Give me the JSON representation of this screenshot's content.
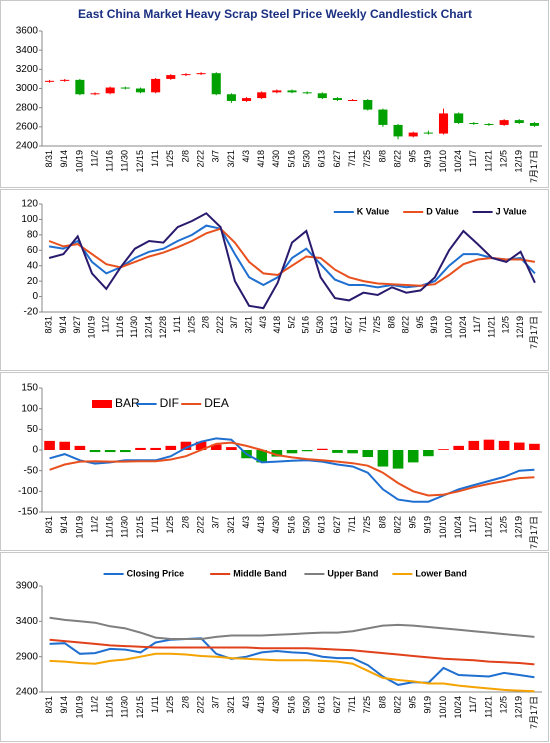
{
  "chart_data": [
    {
      "type": "candlestick",
      "title": "East China Market Heavy Scrap Steel Price Weekly Candlestick Chart",
      "categories": [
        "8/31",
        "9/14",
        "10/19",
        "11/2",
        "11/16",
        "11/30",
        "12/15",
        "1/11",
        "1/25",
        "2/8",
        "2/22",
        "3/7",
        "3/21",
        "4/3",
        "4/18",
        "4/30",
        "5/16",
        "5/30",
        "6/13",
        "6/27",
        "7/11",
        "7/25",
        "8/8",
        "8/22",
        "9/5",
        "9/19",
        "10/10",
        "10/24",
        "11/7",
        "11/21",
        "12/5",
        "12/19",
        "7月17日"
      ],
      "open": [
        3070,
        3080,
        3090,
        2940,
        2950,
        3010,
        3000,
        2960,
        3100,
        3140,
        3150,
        3160,
        2940,
        2870,
        2900,
        2960,
        2980,
        2960,
        2950,
        2900,
        2880,
        2880,
        2780,
        2620,
        2500,
        2540,
        2530,
        2740,
        2640,
        2630,
        2620,
        2670,
        2640
      ],
      "high": [
        3090,
        3100,
        3100,
        2960,
        3020,
        3020,
        3010,
        3110,
        3150,
        3160,
        3170,
        3170,
        2950,
        2910,
        2970,
        2990,
        2990,
        2970,
        2960,
        2910,
        2890,
        2890,
        2790,
        2630,
        2550,
        2560,
        2790,
        2750,
        2650,
        2640,
        2680,
        2680,
        2650
      ],
      "low": [
        3060,
        3070,
        2930,
        2930,
        2940,
        2990,
        2950,
        2950,
        3090,
        3130,
        3140,
        2930,
        2850,
        2860,
        2890,
        2950,
        2950,
        2940,
        2890,
        2870,
        2870,
        2770,
        2600,
        2470,
        2490,
        2520,
        2520,
        2630,
        2620,
        2610,
        2610,
        2630,
        2600
      ],
      "close": [
        3080,
        3090,
        2940,
        2950,
        3010,
        3000,
        2960,
        3100,
        3140,
        3150,
        3160,
        2940,
        2870,
        2900,
        2960,
        2980,
        2960,
        2950,
        2900,
        2880,
        2880,
        2780,
        2620,
        2500,
        2540,
        2530,
        2740,
        2640,
        2630,
        2620,
        2670,
        2640,
        2610
      ],
      "up_color": "#ff0000",
      "down_color": "#00a000",
      "ylim": [
        2400,
        3600
      ],
      "yticks": [
        2400,
        2600,
        2800,
        3000,
        3200,
        3400,
        3600
      ]
    },
    {
      "type": "line",
      "legend": "top-right",
      "categories": [
        "8/31",
        "9/14",
        "9/27",
        "10/19",
        "11/2",
        "11/16",
        "11/30",
        "12/14",
        "12/28",
        "1/11",
        "1/25",
        "2/8",
        "2/22",
        "3/7",
        "3/21",
        "4/3",
        "4/18",
        "5/2",
        "5/16",
        "5/30",
        "6/13",
        "6/27",
        "7/11",
        "7/25",
        "8/8",
        "8/22",
        "9/5",
        "9/19",
        "10/10",
        "10/24",
        "11/7",
        "11/21",
        "12/5",
        "12/19",
        "7月17日"
      ],
      "series": [
        {
          "name": "K Value",
          "color": "#1f6fd0",
          "values": [
            65,
            62,
            72,
            45,
            30,
            38,
            50,
            58,
            62,
            72,
            80,
            92,
            88,
            55,
            25,
            15,
            25,
            50,
            62,
            42,
            22,
            15,
            15,
            12,
            15,
            12,
            14,
            20,
            40,
            55,
            55,
            50,
            48,
            50,
            30
          ]
        },
        {
          "name": "D Value",
          "color": "#e8501e",
          "values": [
            72,
            65,
            68,
            55,
            42,
            38,
            45,
            52,
            57,
            64,
            72,
            82,
            88,
            70,
            45,
            30,
            28,
            40,
            52,
            50,
            35,
            25,
            20,
            17,
            16,
            15,
            14,
            16,
            28,
            42,
            48,
            50,
            48,
            48,
            45
          ]
        },
        {
          "name": "J Value",
          "color": "#2a1a6e",
          "values": [
            50,
            55,
            78,
            30,
            10,
            38,
            62,
            72,
            70,
            90,
            98,
            108,
            90,
            20,
            -12,
            -15,
            18,
            70,
            85,
            25,
            -2,
            -5,
            5,
            2,
            12,
            5,
            8,
            25,
            60,
            85,
            68,
            50,
            45,
            58,
            18
          ]
        }
      ],
      "ylim": [
        -20,
        120
      ],
      "yticks": [
        -20,
        0,
        20,
        40,
        60,
        80,
        100,
        120
      ]
    },
    {
      "type": "combo",
      "legend": "top-left",
      "categories": [
        "8/31",
        "9/14",
        "10/19",
        "11/2",
        "11/16",
        "11/30",
        "12/15",
        "1/11",
        "1/25",
        "2/8",
        "2/22",
        "3/7",
        "3/21",
        "4/3",
        "4/18",
        "4/30",
        "5/16",
        "5/30",
        "6/13",
        "6/27",
        "7/11",
        "7/25",
        "8/8",
        "8/22",
        "9/5",
        "9/19",
        "10/10",
        "10/24",
        "11/7",
        "11/21",
        "12/5",
        "12/19",
        "7月17日"
      ],
      "series": [
        {
          "name": "BAR",
          "type": "bar",
          "color": "#ff0000",
          "negative_color": "#00a000",
          "values": [
            22,
            20,
            10,
            -5,
            -5,
            -5,
            5,
            5,
            10,
            20,
            20,
            13,
            7,
            -20,
            -30,
            -16,
            -8,
            -3,
            3,
            -7,
            -8,
            -17,
            -40,
            -45,
            -30,
            -15,
            2,
            10,
            22,
            25,
            22,
            18,
            15
          ]
        },
        {
          "name": "DIF",
          "type": "line",
          "color": "#1f6fd0",
          "values": [
            -20,
            -10,
            -25,
            -33,
            -30,
            -25,
            -25,
            -25,
            -15,
            5,
            20,
            28,
            25,
            -10,
            -30,
            -28,
            -26,
            -25,
            -28,
            -35,
            -40,
            -55,
            -95,
            -120,
            -125,
            -125,
            -110,
            -95,
            -85,
            -75,
            -65,
            -50,
            -48
          ]
        },
        {
          "name": "DEA",
          "type": "line",
          "color": "#e8501e",
          "values": [
            -48,
            -35,
            -28,
            -27,
            -28,
            -28,
            -27,
            -27,
            -23,
            -15,
            0,
            15,
            18,
            10,
            0,
            -12,
            -18,
            -22,
            -25,
            -28,
            -32,
            -38,
            -55,
            -80,
            -100,
            -110,
            -108,
            -100,
            -90,
            -82,
            -75,
            -68,
            -66
          ]
        }
      ],
      "ylim": [
        -150,
        150
      ],
      "yticks": [
        -150,
        -100,
        -50,
        0,
        50,
        100,
        150
      ]
    },
    {
      "type": "line",
      "legend": "top-center",
      "categories": [
        "8/31",
        "9/14",
        "10/19",
        "11/2",
        "11/16",
        "11/30",
        "12/15",
        "1/11",
        "1/25",
        "2/8",
        "2/22",
        "3/7",
        "3/21",
        "4/3",
        "4/18",
        "4/30",
        "5/16",
        "5/30",
        "6/13",
        "6/27",
        "7/11",
        "7/25",
        "8/8",
        "8/22",
        "9/5",
        "9/19",
        "10/10",
        "10/24",
        "11/7",
        "11/21",
        "12/5",
        "12/19",
        "7月17日"
      ],
      "series": [
        {
          "name": "Closing Price",
          "color": "#1f6fd0",
          "values": [
            3080,
            3090,
            2940,
            2950,
            3010,
            3000,
            2960,
            3100,
            3140,
            3150,
            3160,
            2940,
            2870,
            2900,
            2960,
            2980,
            2960,
            2950,
            2900,
            2880,
            2880,
            2780,
            2620,
            2500,
            2540,
            2530,
            2740,
            2640,
            2630,
            2620,
            2670,
            2640,
            2610
          ]
        },
        {
          "name": "Middle Band",
          "color": "#e0401a",
          "values": [
            3140,
            3120,
            3100,
            3080,
            3060,
            3050,
            3040,
            3030,
            3030,
            3030,
            3030,
            3030,
            3030,
            3030,
            3020,
            3020,
            3020,
            3020,
            3010,
            3000,
            2990,
            2970,
            2950,
            2930,
            2910,
            2890,
            2870,
            2860,
            2850,
            2830,
            2820,
            2810,
            2790
          ]
        },
        {
          "name": "Upper Band",
          "color": "#7f7f7f",
          "values": [
            3450,
            3420,
            3400,
            3380,
            3330,
            3300,
            3240,
            3170,
            3150,
            3150,
            3150,
            3180,
            3200,
            3200,
            3200,
            3210,
            3220,
            3230,
            3240,
            3240,
            3260,
            3300,
            3340,
            3350,
            3340,
            3320,
            3300,
            3280,
            3260,
            3240,
            3220,
            3200,
            3180
          ]
        },
        {
          "name": "Lower Band",
          "color": "#f5a300",
          "values": [
            2840,
            2830,
            2810,
            2800,
            2840,
            2860,
            2900,
            2940,
            2940,
            2930,
            2910,
            2900,
            2880,
            2870,
            2860,
            2850,
            2850,
            2850,
            2840,
            2830,
            2800,
            2700,
            2600,
            2570,
            2550,
            2520,
            2520,
            2490,
            2470,
            2450,
            2430,
            2420,
            2410
          ]
        }
      ],
      "ylim": [
        2400,
        3900
      ],
      "yticks": [
        2400,
        2900,
        3400,
        3900
      ]
    }
  ]
}
